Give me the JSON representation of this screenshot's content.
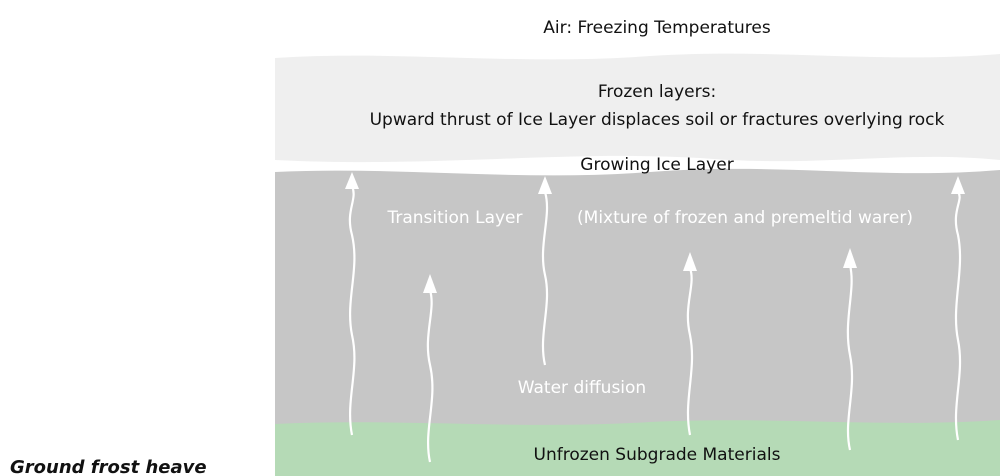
{
  "caption": "Ground frost heave",
  "layers": {
    "air": "Air: Freezing Temperatures",
    "frozen_title": "Frozen layers:",
    "frozen_desc": "Upward thrust of Ice Layer displaces soil or fractures overlying rock",
    "ice": "Growing Ice Layer",
    "transition": "Transition Layer",
    "transition_note": "(Mixture of frozen and premeltid warer)",
    "diffusion": "Water diffusion",
    "unfrozen": "Unfrozen Subgrade Materials"
  }
}
